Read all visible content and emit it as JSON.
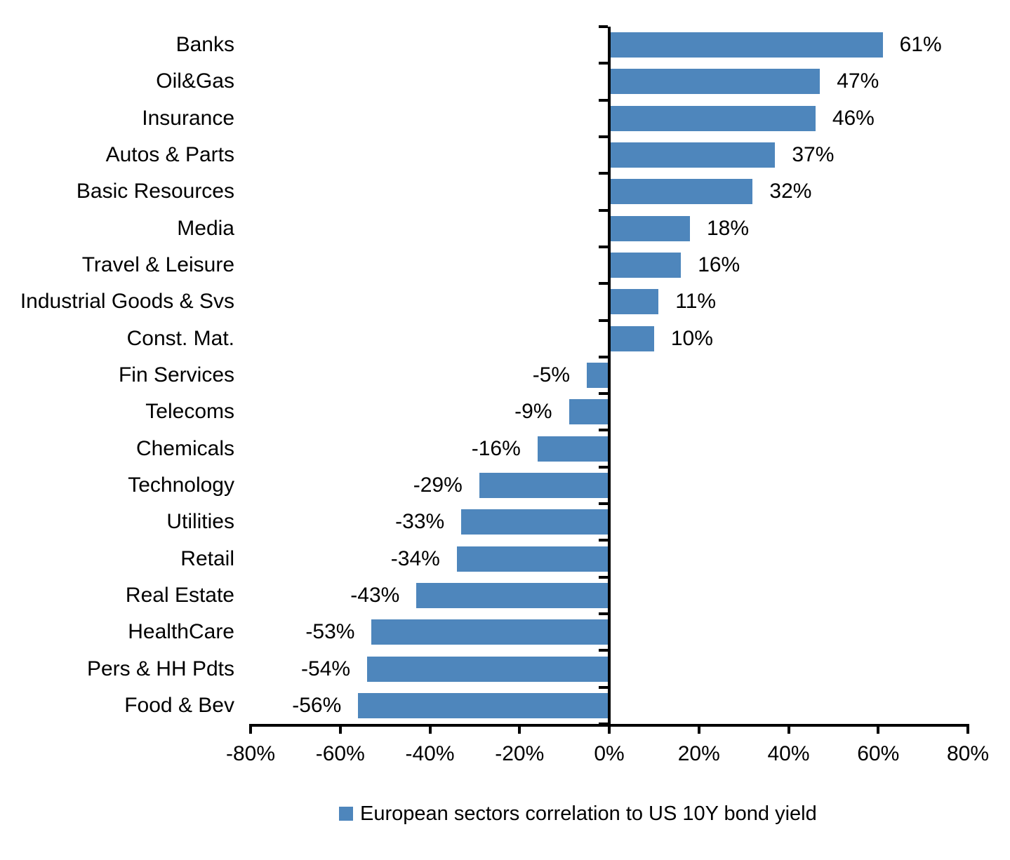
{
  "chart_data": {
    "type": "bar",
    "orientation": "horizontal",
    "title": "",
    "categories": [
      "Banks",
      "Oil&Gas",
      "Insurance",
      "Autos & Parts",
      "Basic Resources",
      "Media",
      "Travel & Leisure",
      "Industrial Goods & Svs",
      "Const. Mat.",
      "Fin Services",
      "Telecoms",
      "Chemicals",
      "Technology",
      "Utilities",
      "Retail",
      "Real Estate",
      "HealthCare",
      "Pers & HH Pdts",
      "Food & Bev"
    ],
    "values": [
      61,
      47,
      46,
      37,
      32,
      18,
      16,
      11,
      10,
      -5,
      -9,
      -16,
      -29,
      -33,
      -34,
      -43,
      -53,
      -54,
      -56
    ],
    "value_labels": [
      "61%",
      "47%",
      "46%",
      "37%",
      "32%",
      "18%",
      "16%",
      "11%",
      "10%",
      "-5%",
      "-9%",
      "-16%",
      "-29%",
      "-33%",
      "-34%",
      "-43%",
      "-53%",
      "-54%",
      "-56%"
    ],
    "xlabel": "",
    "ylabel": "",
    "x_axis": {
      "min": -80,
      "max": 80,
      "tick_step": 20,
      "tick_labels": [
        "-80%",
        "-60%",
        "-40%",
        "-20%",
        "0%",
        "20%",
        "40%",
        "60%",
        "80%"
      ]
    },
    "grid": false,
    "legend": {
      "position": "bottom",
      "label": "European sectors correlation to US 10Y bond yield"
    },
    "colors": {
      "bar": "#4E86BC",
      "axis": "#000000",
      "text": "#000000",
      "background": "#FFFFFF"
    }
  }
}
